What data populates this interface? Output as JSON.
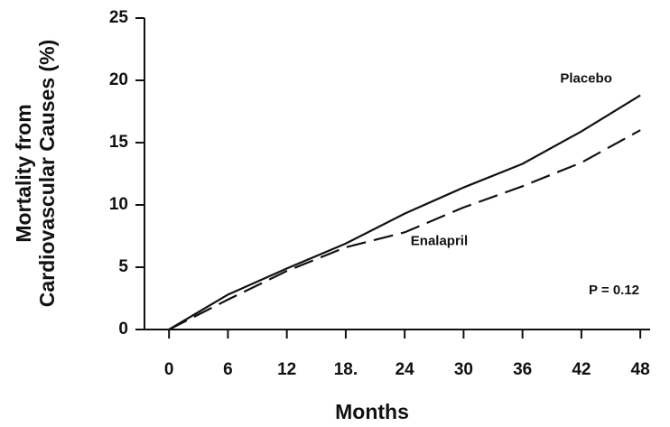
{
  "chart_data": {
    "type": "line",
    "x_label": "Months",
    "y_label": [
      "Mortality from",
      "Cardiovascular Causes (%)"
    ],
    "x": [
      0,
      6,
      12,
      18,
      24,
      30,
      36,
      42,
      48
    ],
    "series": [
      {
        "name": "Placebo",
        "color": "#111111",
        "dash": "solid",
        "values": [
          0,
          2.8,
          4.9,
          6.9,
          9.3,
          11.4,
          13.3,
          15.9,
          18.8
        ]
      },
      {
        "name": "Enalapril",
        "color": "#111111",
        "dash": "dashed",
        "values": [
          0,
          2.4,
          4.7,
          6.6,
          7.8,
          9.8,
          11.5,
          13.4,
          16.0
        ]
      }
    ],
    "annotations": [
      "P = 0.12"
    ],
    "xlim": [
      -2.5,
      49
    ],
    "ylim": [
      0,
      25
    ],
    "xticks": [
      0,
      6,
      12,
      {
        "value": 18,
        "label": "18."
      },
      24,
      30,
      36,
      42,
      48
    ],
    "yticks": [
      0,
      5,
      10,
      15,
      20,
      25
    ],
    "grid": false
  }
}
